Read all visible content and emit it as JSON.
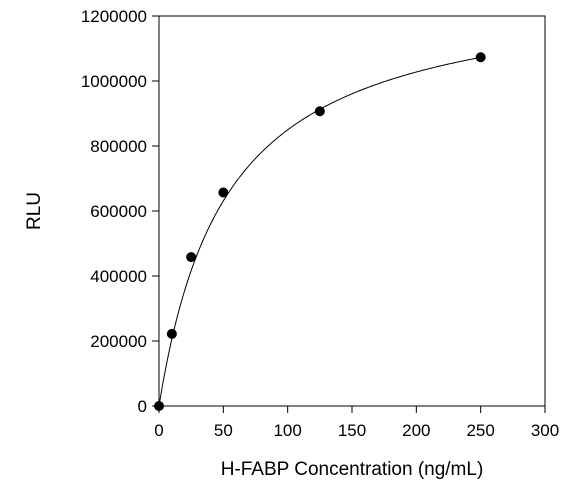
{
  "chart_data": {
    "type": "scatter",
    "title": "",
    "xlabel": "H-FABP Concentration (ng/mL)",
    "ylabel": "RLU",
    "xlim": [
      0,
      300
    ],
    "ylim": [
      0,
      1200000
    ],
    "x_ticks": [
      0,
      50,
      100,
      150,
      200,
      250,
      300
    ],
    "y_ticks": [
      0,
      200000,
      400000,
      600000,
      800000,
      1000000,
      1200000
    ],
    "grid": false,
    "legend": "none",
    "series": [
      {
        "x": [
          0,
          10,
          25,
          50,
          125,
          250
        ],
        "y": [
          0,
          222000,
          458000,
          657000,
          907000,
          1073000
        ],
        "marker_color": "#000000"
      }
    ],
    "fit_curve": {
      "type": "saturation",
      "vmax": 1300000,
      "k": 53,
      "color": "#000000"
    }
  }
}
